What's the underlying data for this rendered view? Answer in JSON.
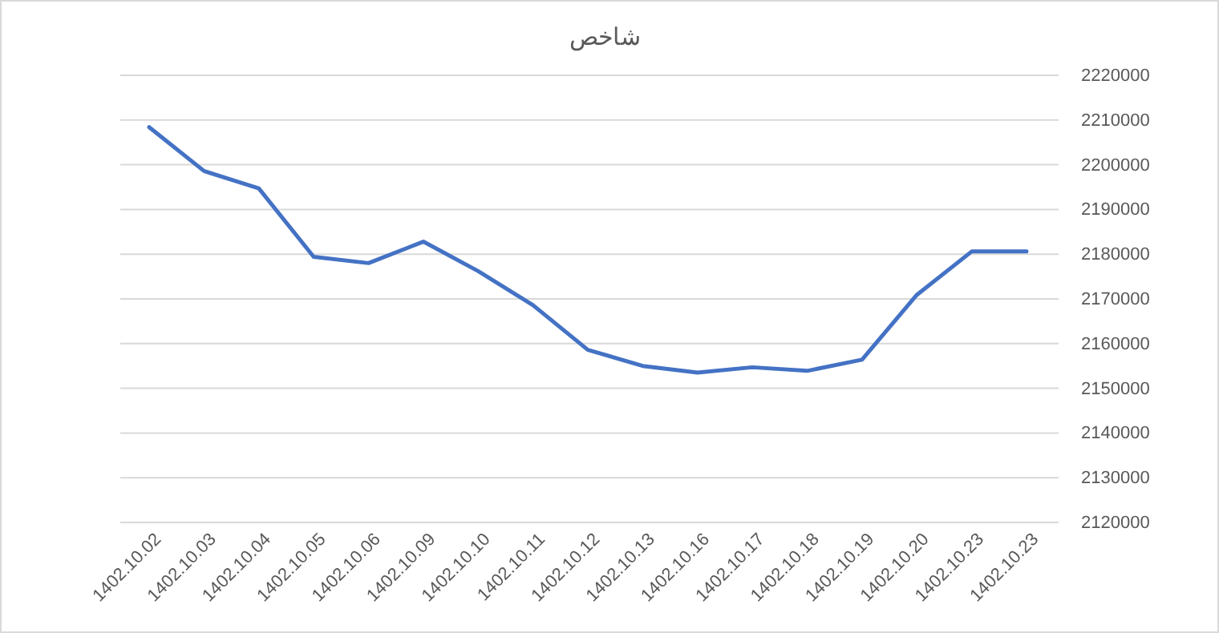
{
  "chart_data": {
    "type": "line",
    "title": "شاخص",
    "categories": [
      "1402.10.02",
      "1402.10.03",
      "1402.10.04",
      "1402.10.05",
      "1402.10.06",
      "1402.10.09",
      "1402.10.10",
      "1402.10.11",
      "1402.10.12",
      "1402.10.13",
      "1402.10.16",
      "1402.10.17",
      "1402.10.18",
      "1402.10.19",
      "1402.10.20",
      "1402.10.23",
      "1402.10.23"
    ],
    "series": [
      {
        "color": "#4472c4",
        "values": [
          2208400,
          2198600,
          2194700,
          2179400,
          2178000,
          2182800,
          2176200,
          2168600,
          2158600,
          2155000,
          2153500,
          2154700,
          2153900,
          2156400,
          2170900,
          2180600,
          2180600
        ]
      }
    ],
    "ylim": [
      2120000,
      2220000
    ],
    "yticks": [
      2120000,
      2130000,
      2140000,
      2150000,
      2160000,
      2170000,
      2180000,
      2190000,
      2200000,
      2210000,
      2220000
    ],
    "grid": "y",
    "marker": "none",
    "line_style": "solid"
  }
}
